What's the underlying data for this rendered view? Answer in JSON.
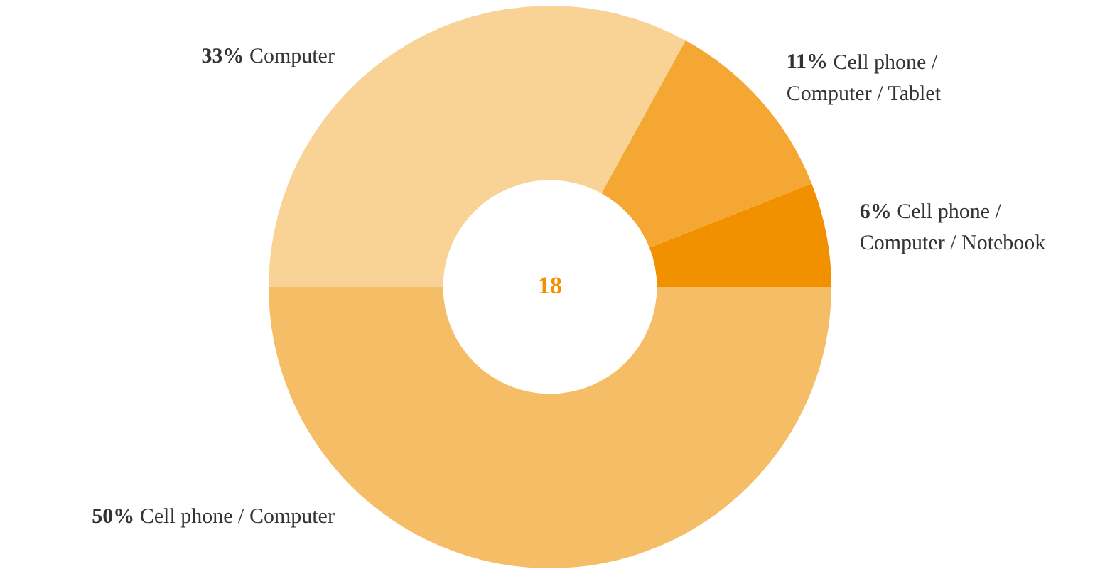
{
  "chart_data": {
    "type": "donut",
    "categories": [
      "Cell phone / Computer",
      "Computer",
      "Cell phone / Computer / Tablet",
      "Cell phone / Computer / Notebook"
    ],
    "values": [
      50,
      33,
      11,
      6
    ],
    "value_labels": [
      "50%",
      "33%",
      "11%",
      "6%"
    ],
    "colors": [
      "#f5bd66",
      "#f9d396",
      "#f4a733",
      "#f29100"
    ],
    "annotations": [
      "18"
    ],
    "legend": false
  }
}
